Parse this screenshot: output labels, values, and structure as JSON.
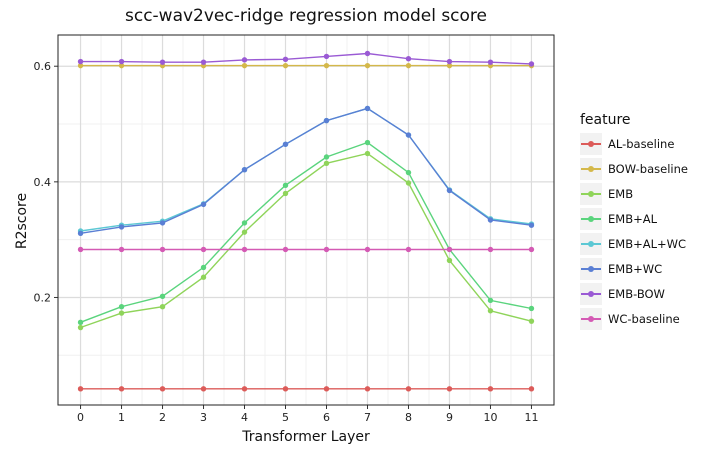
{
  "chart_data": {
    "type": "line",
    "title": "scc-wav2vec-ridge regression model score",
    "xlabel": "Transformer Layer",
    "ylabel": "R2score",
    "x": [
      0,
      1,
      2,
      3,
      4,
      5,
      6,
      7,
      8,
      9,
      10,
      11
    ],
    "xlim": [
      -0.55,
      11.55
    ],
    "ylim": [
      0.014,
      0.654
    ],
    "yticks": [
      0.2,
      0.4,
      0.6
    ],
    "yticks_labels": [
      "0.2",
      "0.4",
      "0.6"
    ],
    "grid": true,
    "legend_title": "feature",
    "legend_position": "right",
    "series": [
      {
        "name": "AL-baseline",
        "color": "#dc5b59",
        "values": [
          0.042,
          0.042,
          0.042,
          0.042,
          0.042,
          0.042,
          0.042,
          0.042,
          0.042,
          0.042,
          0.042,
          0.042
        ]
      },
      {
        "name": "BOW-baseline",
        "color": "#d4b84a",
        "values": [
          0.601,
          0.601,
          0.601,
          0.601,
          0.601,
          0.601,
          0.601,
          0.601,
          0.601,
          0.601,
          0.601,
          0.601
        ]
      },
      {
        "name": "EMB",
        "color": "#8fd45a",
        "values": [
          0.148,
          0.173,
          0.184,
          0.235,
          0.313,
          0.38,
          0.432,
          0.449,
          0.398,
          0.264,
          0.177,
          0.159
        ]
      },
      {
        "name": "EMB+AL",
        "color": "#5ad47d",
        "values": [
          0.157,
          0.184,
          0.202,
          0.252,
          0.329,
          0.394,
          0.443,
          0.468,
          0.416,
          0.283,
          0.195,
          0.181
        ]
      },
      {
        "name": "EMB+AL+WC",
        "color": "#5cc8d4",
        "values": [
          0.315,
          0.325,
          0.332,
          0.362,
          0.421,
          0.465,
          0.506,
          0.527,
          0.481,
          0.386,
          0.336,
          0.327
        ]
      },
      {
        "name": "EMB+WC",
        "color": "#5a7fd4",
        "values": [
          0.311,
          0.322,
          0.329,
          0.361,
          0.421,
          0.465,
          0.506,
          0.527,
          0.481,
          0.385,
          0.334,
          0.325
        ]
      },
      {
        "name": "EMB-BOW",
        "color": "#9a5ad4",
        "values": [
          0.608,
          0.608,
          0.607,
          0.607,
          0.611,
          0.612,
          0.617,
          0.622,
          0.613,
          0.608,
          0.607,
          0.604
        ]
      },
      {
        "name": "WC-baseline",
        "color": "#d45ab4",
        "values": [
          0.283,
          0.283,
          0.283,
          0.283,
          0.283,
          0.283,
          0.283,
          0.283,
          0.283,
          0.283,
          0.283,
          0.283
        ]
      }
    ]
  }
}
